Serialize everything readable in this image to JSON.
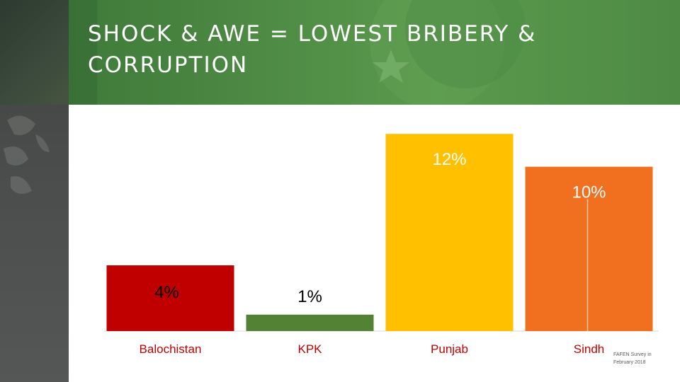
{
  "slide": {
    "title": "SHOCK & AWE = LOWEST BRIBERY & CORRUPTION",
    "source_line1": "FAFEN Survey in",
    "source_line2": "February 2018"
  },
  "colors": {
    "header_green": "#4f8c45",
    "label_color": "#c00000"
  },
  "chart_data": {
    "type": "bar",
    "categories": [
      "Balochistan",
      "KPK",
      "Punjab",
      "Sindh"
    ],
    "values": [
      4,
      1,
      12,
      10
    ],
    "value_labels": [
      "4%",
      "1%",
      "12%",
      "10%"
    ],
    "colors": [
      "#c00000",
      "#548235",
      "#ffc000",
      "#f07020"
    ],
    "ylim": [
      0,
      13
    ],
    "grid": false,
    "legend": "none"
  }
}
